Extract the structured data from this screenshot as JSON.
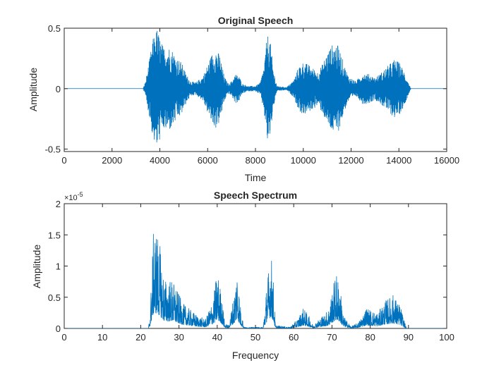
{
  "colors": {
    "trace": "#0072BD",
    "axes": "#262626",
    "background": "#ffffff"
  },
  "chart_data": [
    {
      "type": "line",
      "title": "Original Speech",
      "xlabel": "Time",
      "ylabel": "Amplitude",
      "xlim": [
        0,
        16000
      ],
      "ylim": [
        -0.52,
        0.5
      ],
      "xticks": [
        0,
        2000,
        4000,
        6000,
        8000,
        10000,
        12000,
        14000,
        16000
      ],
      "xtick_labels": [
        "0",
        "2000",
        "4000",
        "6000",
        "8000",
        "10000",
        "12000",
        "14000",
        "16000"
      ],
      "yticks": [
        -0.5,
        0,
        0.5
      ],
      "ytick_labels": [
        "-0.5",
        "0",
        "0.5"
      ],
      "grid": false,
      "signal": {
        "kind": "oscillating-envelope",
        "baseline": 0,
        "envelope": [
          [
            0,
            0
          ],
          [
            3300,
            0
          ],
          [
            3400,
            0.06
          ],
          [
            3550,
            0.22
          ],
          [
            3700,
            0.4
          ],
          [
            3800,
            0.47
          ],
          [
            3900,
            0.5
          ],
          [
            4000,
            0.42
          ],
          [
            4150,
            0.34
          ],
          [
            4300,
            0.36
          ],
          [
            4500,
            0.33
          ],
          [
            4700,
            0.26
          ],
          [
            4900,
            0.22
          ],
          [
            5100,
            0.12
          ],
          [
            5300,
            0.06
          ],
          [
            5500,
            0.05
          ],
          [
            5800,
            0.1
          ],
          [
            6000,
            0.2
          ],
          [
            6200,
            0.3
          ],
          [
            6350,
            0.33
          ],
          [
            6500,
            0.28
          ],
          [
            6700,
            0.1
          ],
          [
            6850,
            0.04
          ],
          [
            7000,
            0.06
          ],
          [
            7150,
            0.12
          ],
          [
            7300,
            0.11
          ],
          [
            7450,
            0.04
          ],
          [
            7700,
            0.02
          ],
          [
            8000,
            0.02
          ],
          [
            8200,
            0.05
          ],
          [
            8350,
            0.18
          ],
          [
            8500,
            0.45
          ],
          [
            8600,
            0.42
          ],
          [
            8750,
            0.16
          ],
          [
            8900,
            0.02
          ],
          [
            9300,
            0.01
          ],
          [
            9600,
            0.07
          ],
          [
            9800,
            0.18
          ],
          [
            10000,
            0.22
          ],
          [
            10200,
            0.2
          ],
          [
            10400,
            0.17
          ],
          [
            10600,
            0.14
          ],
          [
            10800,
            0.2
          ],
          [
            11000,
            0.3
          ],
          [
            11200,
            0.36
          ],
          [
            11350,
            0.38
          ],
          [
            11500,
            0.34
          ],
          [
            11700,
            0.2
          ],
          [
            11900,
            0.1
          ],
          [
            12200,
            0.06
          ],
          [
            12500,
            0.13
          ],
          [
            12750,
            0.12
          ],
          [
            13000,
            0.09
          ],
          [
            13200,
            0.12
          ],
          [
            13500,
            0.18
          ],
          [
            13800,
            0.24
          ],
          [
            14000,
            0.22
          ],
          [
            14200,
            0.15
          ],
          [
            14400,
            0.05
          ],
          [
            14500,
            0
          ],
          [
            16000,
            0
          ]
        ]
      }
    },
    {
      "type": "line",
      "title": "Speech Spectrum",
      "xlabel": "Frequency",
      "ylabel": "Amplitude",
      "xlim": [
        0,
        100
      ],
      "ylim": [
        0,
        2e-05
      ],
      "y_exponent_label": "×10",
      "y_exponent": "-5",
      "xticks": [
        0,
        10,
        20,
        30,
        40,
        50,
        60,
        70,
        80,
        90,
        100
      ],
      "xtick_labels": [
        "0",
        "10",
        "20",
        "30",
        "40",
        "50",
        "60",
        "70",
        "80",
        "90",
        "100"
      ],
      "yticks": [
        0,
        5e-06,
        1e-05,
        1.5e-05,
        2e-05
      ],
      "ytick_labels": [
        "0",
        "0.5",
        "1",
        "1.5",
        "2"
      ],
      "grid": false,
      "signal": {
        "kind": "spiky-envelope",
        "baseline": 0,
        "envelope": [
          [
            0,
            0
          ],
          [
            22,
            0
          ],
          [
            22.5,
            3e-06
          ],
          [
            23,
            1.2e-05
          ],
          [
            23.5,
            1.7e-05
          ],
          [
            24.5,
            1.55e-05
          ],
          [
            25,
            1.35e-05
          ],
          [
            26,
            8.5e-06
          ],
          [
            27,
            7.5e-06
          ],
          [
            28,
            8e-06
          ],
          [
            29,
            7e-06
          ],
          [
            30,
            5.5e-06
          ],
          [
            31,
            4e-06
          ],
          [
            33,
            3e-06
          ],
          [
            35,
            2e-06
          ],
          [
            37,
            1.5e-06
          ],
          [
            39,
            5e-06
          ],
          [
            40,
            9.5e-06
          ],
          [
            41,
            6e-06
          ],
          [
            42,
            8e-07
          ],
          [
            43,
            5e-07
          ],
          [
            44.5,
            6e-06
          ],
          [
            45.2,
            1.05e-05
          ],
          [
            46,
            4e-06
          ],
          [
            47,
            2e-07
          ],
          [
            52,
            2e-07
          ],
          [
            53,
            7.5e-06
          ],
          [
            54,
            1.25e-05
          ],
          [
            54.6,
            9e-06
          ],
          [
            55.2,
            5e-07
          ],
          [
            59,
            2e-07
          ],
          [
            61,
            1.5e-06
          ],
          [
            62.5,
            3.3e-06
          ],
          [
            64,
            2e-06
          ],
          [
            65,
            5e-07
          ],
          [
            69,
            3e-06
          ],
          [
            71,
            9e-06
          ],
          [
            72,
            7.5e-06
          ],
          [
            73,
            2e-06
          ],
          [
            75,
            3e-07
          ],
          [
            77,
            1e-06
          ],
          [
            79,
            3.5e-06
          ],
          [
            80,
            3e-06
          ],
          [
            82,
            2.5e-06
          ],
          [
            84,
            4.5e-06
          ],
          [
            86,
            5.5e-06
          ],
          [
            88,
            3.5e-06
          ],
          [
            89,
            1e-06
          ],
          [
            89.5,
            0
          ],
          [
            100,
            0
          ]
        ]
      }
    }
  ]
}
